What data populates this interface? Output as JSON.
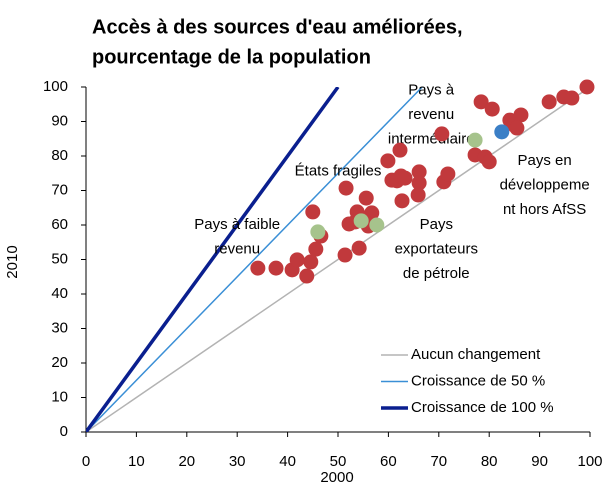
{
  "chart_data": {
    "type": "scatter",
    "title_lines": [
      "Accès à des sources d'eau améliorées,",
      "pourcentage de la population"
    ],
    "x_label": "2000",
    "y_label": "2010",
    "xlim": [
      0,
      100
    ],
    "ylim": [
      0,
      100
    ],
    "xticks": [
      0,
      10,
      20,
      30,
      40,
      50,
      60,
      70,
      80,
      90,
      100
    ],
    "yticks": [
      0,
      10,
      20,
      30,
      40,
      50,
      60,
      70,
      80,
      90,
      100
    ],
    "lines": [
      {
        "name": "Aucun changement",
        "color": "#b3b3b3",
        "width": 1.5,
        "x": [
          0,
          100
        ],
        "values": [
          0,
          100
        ]
      },
      {
        "name": "Croissance de 50 %",
        "color": "#3a8fd6",
        "width": 1.5,
        "x": [
          0,
          66.7
        ],
        "values": [
          0,
          100
        ]
      },
      {
        "name": "Croissance de 100 %",
        "color": "#0a1f8f",
        "width": 3.5,
        "x": [
          0,
          50
        ],
        "values": [
          0,
          100
        ]
      }
    ],
    "scatter": [
      {
        "color": "#c1393c",
        "x": [
          34.1,
          37.7,
          40.9,
          41.9,
          43.8,
          44.6,
          45.6,
          45.0,
          46.6,
          51.4,
          51.6,
          53.4,
          52.2,
          53.8,
          54.2,
          56.0,
          56.7,
          55.6,
          59.9,
          60.7,
          61.7,
          62.3,
          62.5,
          63.3,
          66.1,
          66.1,
          65.9,
          62.7,
          70.6,
          71.0,
          71.8,
          78.4,
          80.6,
          77.2,
          79.2,
          80.0,
          84.1,
          86.3,
          84.9,
          85.5,
          91.9,
          94.8,
          96.4,
          99.4
        ],
        "values": [
          47.5,
          47.5,
          47.0,
          49.9,
          45.2,
          49.3,
          53.0,
          63.8,
          56.8,
          51.3,
          70.7,
          60.9,
          60.3,
          63.8,
          53.3,
          59.7,
          63.5,
          67.8,
          78.6,
          73.0,
          72.8,
          81.7,
          74.2,
          73.6,
          75.4,
          72.2,
          68.7,
          67.0,
          86.4,
          72.5,
          74.8,
          95.7,
          93.6,
          80.3,
          79.7,
          78.3,
          90.4,
          91.9,
          89.0,
          88.1,
          95.7,
          97.1,
          96.8,
          100
        ]
      },
      {
        "color": "#a6c38c",
        "x": [
          46.0,
          54.6,
          57.7,
          77.2
        ],
        "values": [
          58.0,
          61.2,
          60.0,
          84.6
        ]
      },
      {
        "color": "#3b7fc6",
        "x": [
          82.5
        ],
        "values": [
          87.0
        ]
      }
    ],
    "annotations": [
      {
        "lines": [
          "Pays à faible",
          "revenu"
        ],
        "x": 30,
        "y": 60
      },
      {
        "lines": [
          "États fragiles"
        ],
        "x": 50,
        "y": 75.5
      },
      {
        "lines": [
          "Pays à",
          "revenu",
          "intermédiaire"
        ],
        "x": 68.5,
        "y": 99
      },
      {
        "lines": [
          "Pays en",
          "développeme",
          "nt hors AfSS"
        ],
        "x": 91,
        "y": 78.5
      },
      {
        "lines": [
          "Pays",
          "exportateurs",
          "de pétrole"
        ],
        "x": 69.5,
        "y": 60
      }
    ]
  }
}
